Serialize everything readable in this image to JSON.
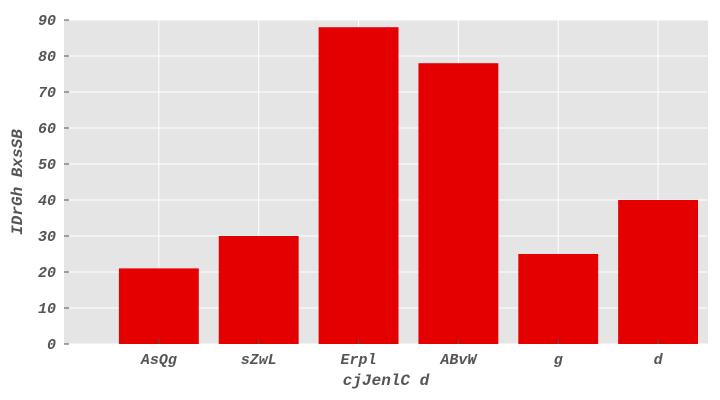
{
  "chart_data": {
    "type": "bar",
    "categories": [
      "AsQg",
      "sZwL",
      "Erpl",
      "ABvW",
      "g",
      "d"
    ],
    "values": [
      21,
      30,
      88,
      78,
      25,
      40
    ],
    "xlabel": "cjJenlC d",
    "ylabel": "IDrGh BxsSB",
    "ylim": [
      0,
      90
    ],
    "yticks": [
      0,
      10,
      20,
      30,
      40,
      50,
      60,
      70,
      80,
      90
    ],
    "grid": true,
    "colors": {
      "bar": "#e50000",
      "background": "#e5e5e5",
      "grid": "#ffffff",
      "text": "#555555"
    }
  }
}
